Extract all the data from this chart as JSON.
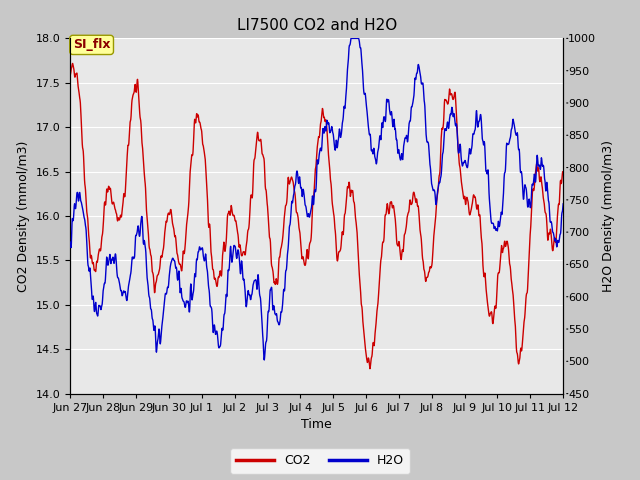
{
  "title": "LI7500 CO2 and H2O",
  "xlabel": "Time",
  "ylabel_left": "CO2 Density (mmol/m3)",
  "ylabel_right": "H2O Density (mmol/m3)",
  "ylim_left": [
    14.0,
    18.0
  ],
  "ylim_right": [
    450,
    1000
  ],
  "x_tick_labels": [
    "Jun 27",
    "Jun 28",
    "Jun 29",
    "Jun 30",
    "Jul 1",
    "Jul 2",
    "Jul 3",
    "Jul 4",
    "Jul 5",
    "Jul 6",
    "Jul 7",
    "Jul 8",
    "Jul 9",
    "Jul 10",
    "Jul 11",
    "Jul 12"
  ],
  "co2_color": "#cc0000",
  "h2o_color": "#0000cc",
  "fig_facecolor": "#c8c8c8",
  "plot_bg_color": "#e8e8e8",
  "annotation_text": "SI_flx",
  "annotation_color": "#8b0000",
  "annotation_bg": "#ffff99",
  "annotation_edge": "#999900",
  "legend_co2": "CO2",
  "legend_h2o": "H2O",
  "grid_color": "#ffffff",
  "title_fontsize": 11,
  "axis_fontsize": 9,
  "tick_fontsize": 8,
  "legend_fontsize": 9,
  "line_width": 1.0,
  "yticks_left": [
    14.0,
    14.5,
    15.0,
    15.5,
    16.0,
    16.5,
    17.0,
    17.5,
    18.0
  ],
  "yticks_right": [
    450,
    500,
    550,
    600,
    650,
    700,
    750,
    800,
    850,
    900,
    950,
    1000
  ]
}
